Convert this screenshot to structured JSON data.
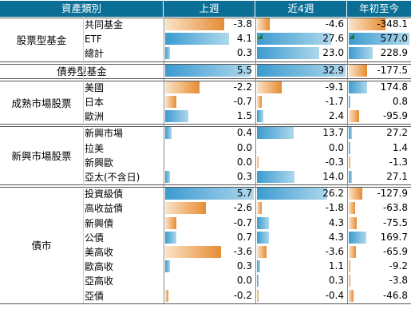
{
  "table": {
    "headers": [
      "資產類別",
      "上週",
      "近4週",
      "年初至今"
    ],
    "sections": [
      {
        "name": "股票型基金",
        "rows": [
          {
            "label": "共同基金",
            "values": [
              "-3.8",
              "-4.6",
              "-348.1"
            ],
            "flag": false
          },
          {
            "label": "ETF",
            "values": [
              "4.1",
              "27.6",
              "577.0"
            ],
            "flag": true
          },
          {
            "label": "總計",
            "values": [
              "0.3",
              "23.0",
              "228.9"
            ],
            "flag": false
          }
        ]
      },
      {
        "name": "債券型基金",
        "rows": [
          {
            "label": "",
            "values": [
              "5.5",
              "32.9",
              "-177.5"
            ],
            "flag": false
          }
        ]
      },
      {
        "name": "成熟市場股票",
        "rows": [
          {
            "label": "美國",
            "values": [
              "-2.2",
              "-9.1",
              "174.8"
            ],
            "flag": false
          },
          {
            "label": "日本",
            "values": [
              "-0.7",
              "-1.7",
              "0.8"
            ],
            "flag": false
          },
          {
            "label": "歐洲",
            "values": [
              "1.5",
              "2.4",
              "-95.9"
            ],
            "flag": false
          }
        ]
      },
      {
        "name": "新興市場股票",
        "rows": [
          {
            "label": "新興市場",
            "values": [
              "0.4",
              "13.7",
              "27.2"
            ],
            "flag": false
          },
          {
            "label": "拉美",
            "values": [
              "0.0",
              "0.0",
              "1.4"
            ],
            "flag": false
          },
          {
            "label": "新興歐",
            "values": [
              "0.0",
              "-0.3",
              "-1.3"
            ],
            "flag": false
          },
          {
            "label": "亞太(不含日)",
            "values": [
              "0.3",
              "14.0",
              "27.1"
            ],
            "flag": false
          }
        ]
      },
      {
        "name": "債市",
        "rows": [
          {
            "label": "投資級債",
            "values": [
              "5.7",
              "26.2",
              "-127.9"
            ],
            "flag": false
          },
          {
            "label": "高收益債",
            "values": [
              "-2.6",
              "-1.8",
              "-63.8"
            ],
            "flag": false
          },
          {
            "label": "新興債",
            "values": [
              "-0.7",
              "4.3",
              "-75.5"
            ],
            "flag": false
          },
          {
            "label": "公債",
            "values": [
              "0.7",
              "4.3",
              "169.7"
            ],
            "flag": false
          },
          {
            "label": "美高收",
            "values": [
              "-3.6",
              "-3.6",
              "-65.9"
            ],
            "flag": false
          },
          {
            "label": "歐高收",
            "values": [
              "0.3",
              "1.1",
              "-9.2"
            ],
            "flag": false
          },
          {
            "label": "亞高收",
            "values": [
              "0.0",
              "0.3",
              "-3.8"
            ],
            "flag": false
          },
          {
            "label": "亞債",
            "values": [
              "-0.2",
              "-0.4",
              "-46.8"
            ],
            "flag": false
          }
        ]
      }
    ]
  },
  "colors": {
    "header_bg": "#0a6e95",
    "positive_bar": "#3b9bd0",
    "negative_bar": "#e58c32",
    "flag_marker": "#1f7a3a"
  }
}
